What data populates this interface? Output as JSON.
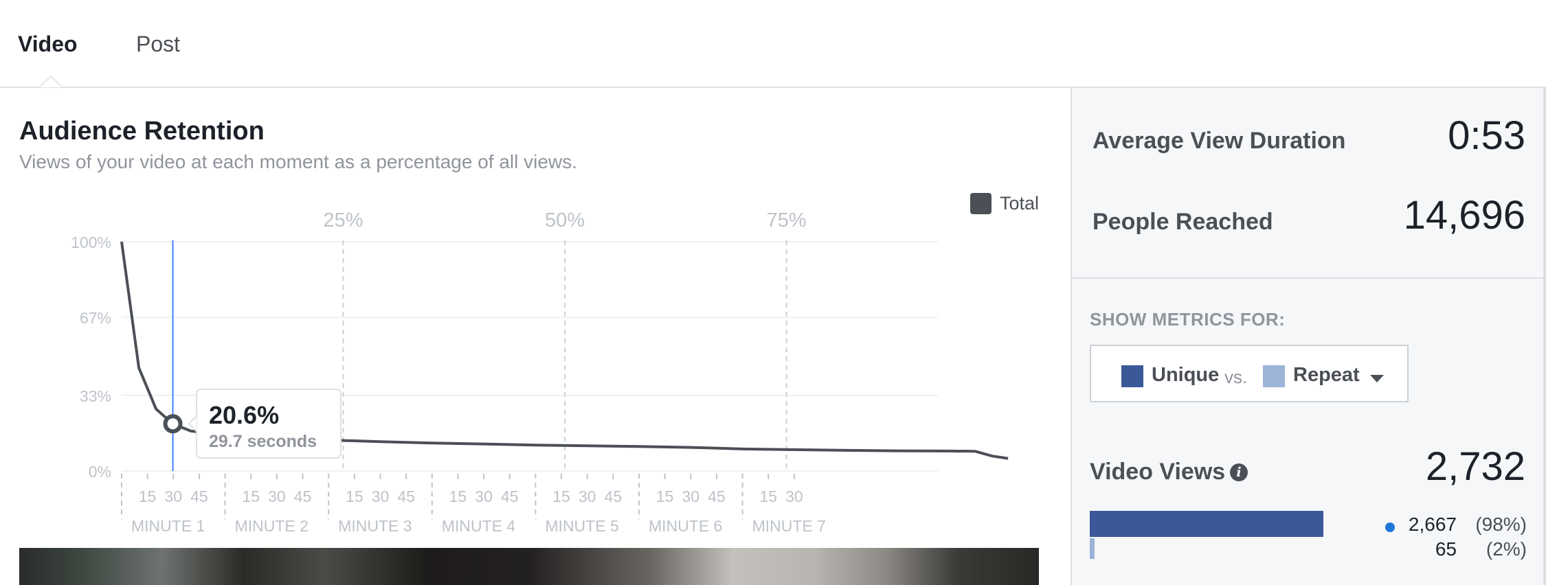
{
  "tabs": [
    {
      "label": "Video",
      "active": true
    },
    {
      "label": "Post",
      "active": false
    }
  ],
  "retention": {
    "title": "Audience Retention",
    "subtitle": "Views of your video at each moment as a percentage of all views.",
    "legend": "Total"
  },
  "chart_data": {
    "type": "line",
    "title": "Audience Retention",
    "series": [
      {
        "name": "Total",
        "color": "#4b4f56",
        "points": [
          {
            "t": 0,
            "pct": 100
          },
          {
            "t": 10,
            "pct": 45
          },
          {
            "t": 20,
            "pct": 27
          },
          {
            "t": 29.7,
            "pct": 20.6
          },
          {
            "t": 40,
            "pct": 17.5
          },
          {
            "t": 60,
            "pct": 15.5
          },
          {
            "t": 90,
            "pct": 14.5
          },
          {
            "t": 120,
            "pct": 13.5
          },
          {
            "t": 150,
            "pct": 12.8
          },
          {
            "t": 180,
            "pct": 12.2
          },
          {
            "t": 210,
            "pct": 11.8
          },
          {
            "t": 240,
            "pct": 11.3
          },
          {
            "t": 270,
            "pct": 11.0
          },
          {
            "t": 300,
            "pct": 10.7
          },
          {
            "t": 330,
            "pct": 10.3
          },
          {
            "t": 360,
            "pct": 9.6
          },
          {
            "t": 390,
            "pct": 9.3
          },
          {
            "t": 420,
            "pct": 9.0
          },
          {
            "t": 450,
            "pct": 8.8
          },
          {
            "t": 480,
            "pct": 8.7
          },
          {
            "t": 495,
            "pct": 8.6
          },
          {
            "t": 505,
            "pct": 6.5
          },
          {
            "t": 514,
            "pct": 5.5
          }
        ]
      }
    ],
    "y_ticks": [
      "100%",
      "67%",
      "33%",
      "0%"
    ],
    "y_tick_values": [
      100,
      67,
      33,
      0
    ],
    "x_range_seconds": [
      0,
      514
    ],
    "minute_labels": [
      "MINUTE 1",
      "MINUTE 2",
      "MINUTE 3",
      "MINUTE 4",
      "MINUTE 5",
      "MINUTE 6",
      "MINUTE 7"
    ],
    "second_ticks": [
      "15",
      "30",
      "45"
    ],
    "last_minute_ticks": [
      "15",
      "30"
    ],
    "quartile_markers": [
      {
        "label": "25%",
        "t": 128.5
      },
      {
        "label": "50%",
        "t": 257
      },
      {
        "label": "75%",
        "t": 385.5
      }
    ],
    "hover": {
      "t": 29.7,
      "value": "20.6%",
      "time_label": "29.7 seconds",
      "pct": 20.6
    }
  },
  "metrics": {
    "avg_view_duration": {
      "label": "Average View Duration",
      "value": "0:53"
    },
    "people_reached": {
      "label": "People Reached",
      "value": "14,696"
    }
  },
  "filter": {
    "label": "SHOW METRICS FOR:",
    "unique": "Unique",
    "vs": "vs.",
    "repeat": "Repeat",
    "unique_color": "#3b5998",
    "repeat_color": "#9cb4d8"
  },
  "video_views": {
    "label": "Video Views",
    "value": "2,732",
    "unique_count": "2,667",
    "unique_pct": "(98%)",
    "repeat_count": "65",
    "repeat_pct": "(2%)"
  }
}
